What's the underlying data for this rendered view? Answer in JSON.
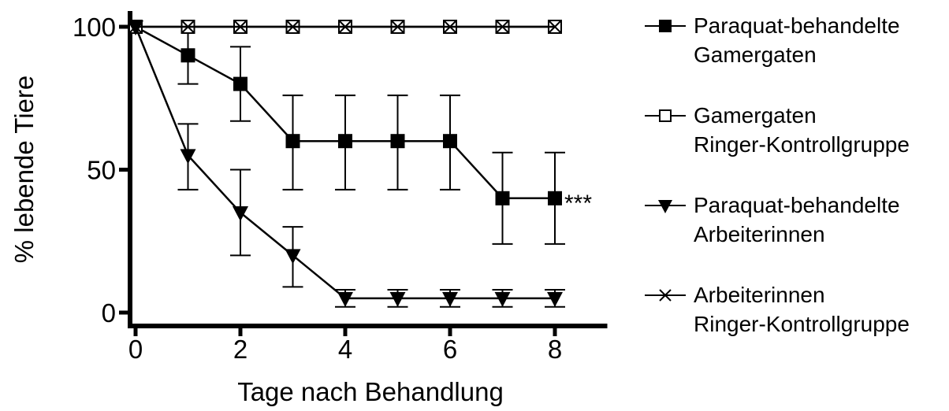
{
  "chart_data": {
    "type": "line",
    "title": "",
    "xlabel": "Tage nach Behandlung",
    "ylabel": "% lebende Tiere",
    "xlim": [
      0,
      9
    ],
    "ylim": [
      0,
      100
    ],
    "x_ticks": [
      0,
      2,
      4,
      6,
      8
    ],
    "y_ticks": [
      0,
      50,
      100
    ],
    "grid": false,
    "legend_position": "right",
    "significance_label": "***",
    "significance_anchor": {
      "series": 0,
      "x": 8
    },
    "series": [
      {
        "name_lines": [
          "Paraquat-behandelte",
          "Gamergaten"
        ],
        "marker": "filled-square",
        "color": "#000000",
        "x": [
          0,
          1,
          2,
          3,
          4,
          5,
          6,
          7,
          8
        ],
        "y": [
          100,
          90,
          80,
          60,
          60,
          60,
          60,
          40,
          40
        ],
        "err_low": [
          100,
          80,
          67,
          43,
          43,
          43,
          43,
          24,
          24
        ],
        "err_high": [
          100,
          100,
          93,
          76,
          76,
          76,
          76,
          56,
          56
        ]
      },
      {
        "name_lines": [
          "Gamergaten",
          "Ringer-Kontrollgruppe"
        ],
        "marker": "open-square",
        "color": "#000000",
        "x": [
          0,
          1,
          2,
          3,
          4,
          5,
          6,
          7,
          8
        ],
        "y": [
          100,
          100,
          100,
          100,
          100,
          100,
          100,
          100,
          100
        ]
      },
      {
        "name_lines": [
          "Paraquat-behandelte",
          "Arbeiterinnen"
        ],
        "marker": "filled-triangle-down",
        "color": "#000000",
        "x": [
          0,
          1,
          2,
          3,
          4,
          5,
          6,
          7,
          8
        ],
        "y": [
          100,
          55,
          35,
          20,
          5,
          5,
          5,
          5,
          5
        ],
        "err_low": [
          100,
          43,
          20,
          9,
          2,
          2,
          2,
          2,
          2
        ],
        "err_high": [
          100,
          66,
          50,
          30,
          8,
          8,
          8,
          8,
          8
        ]
      },
      {
        "name_lines": [
          "Arbeiterinnen",
          "Ringer-Kontrollgruppe"
        ],
        "marker": "x",
        "color": "#000000",
        "x": [
          0,
          1,
          2,
          3,
          4,
          5,
          6,
          7,
          8
        ],
        "y": [
          100,
          100,
          100,
          100,
          100,
          100,
          100,
          100,
          100
        ]
      }
    ]
  }
}
